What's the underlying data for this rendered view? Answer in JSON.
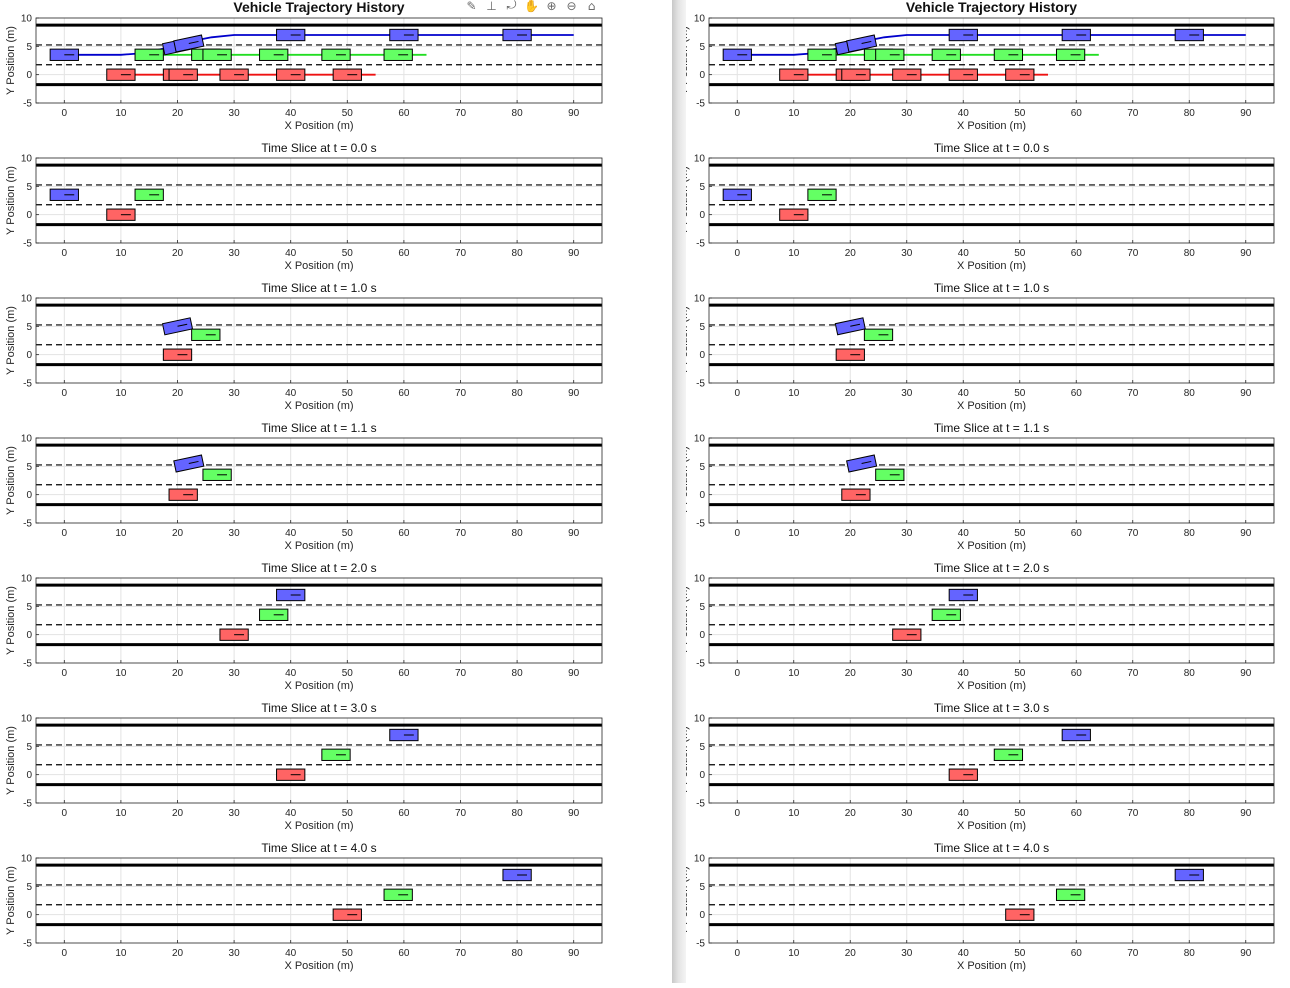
{
  "figures": [
    {
      "id": "left",
      "panel_titles": [
        "Vehicle Trajectory History",
        "Time Slice at t = 0.0 s",
        "Time Slice at t = 1.0 s",
        "Time Slice at t = 1.1 s",
        "Time Slice at t = 2.0 s",
        "Time Slice at t = 3.0 s",
        "Time Slice at t = 4.0 s"
      ]
    },
    {
      "id": "right",
      "panel_titles": [
        "Vehicle Trajectory History",
        "Time Slice at t = 0.0 s",
        "Time Slice at t = 1.0 s",
        "Time Slice at t = 1.1 s",
        "Time Slice at t = 2.0 s",
        "Time Slice at t = 3.0 s",
        "Time Slice at t = 4.0 s"
      ]
    }
  ],
  "toolbar": {
    "icons": [
      {
        "name": "brush-icon",
        "glyph": "✎"
      },
      {
        "name": "data-tips-icon",
        "glyph": "⊥"
      },
      {
        "name": "rotate-icon",
        "glyph": "⤾"
      },
      {
        "name": "pan-icon",
        "glyph": "✋"
      },
      {
        "name": "zoom-in-icon",
        "glyph": "⊕"
      },
      {
        "name": "zoom-out-icon",
        "glyph": "⊖"
      },
      {
        "name": "home-icon",
        "glyph": "⌂"
      }
    ]
  },
  "colors": {
    "blue_vehicle": "#6464ff",
    "green_vehicle": "#64ff64",
    "red_vehicle": "#ff6464",
    "blue_path": "#0000cc",
    "green_path": "#22dd22",
    "red_path": "#ee1111",
    "road_edge": "#000000",
    "lane_marking": "#000000"
  },
  "chart_data": [
    {
      "type": "scatter",
      "panel": "history",
      "title": "Vehicle Trajectory History",
      "xlabel": "X Position (m)",
      "ylabel": "Y Position (m)",
      "xlim": [
        -5,
        95
      ],
      "ylim": [
        -5,
        10
      ],
      "xticks": [
        0,
        10,
        20,
        30,
        40,
        50,
        60,
        70,
        80,
        90
      ],
      "yticks": [
        -5,
        0,
        5,
        10
      ],
      "grid": true,
      "road_edges_y": [
        -1.75,
        8.75
      ],
      "lane_markings_y": [
        1.75,
        5.25
      ],
      "paths": [
        {
          "color": "blue",
          "points": [
            [
              0,
              3.5
            ],
            [
              10,
              3.5
            ],
            [
              14,
              3.8
            ],
            [
              18,
              4.7
            ],
            [
              22,
              5.8
            ],
            [
              26,
              6.6
            ],
            [
              30,
              7.0
            ],
            [
              40,
              7.0
            ],
            [
              60,
              7.0
            ],
            [
              80,
              7.0
            ],
            [
              90,
              7.0
            ]
          ]
        },
        {
          "color": "green",
          "points": [
            [
              15,
              3.5
            ],
            [
              64,
              3.5
            ]
          ]
        },
        {
          "color": "red",
          "points": [
            [
              10,
              0
            ],
            [
              55,
              0
            ]
          ]
        }
      ],
      "vehicles": [
        {
          "color": "blue",
          "x": 0,
          "y": 3.5,
          "angle": 0
        },
        {
          "color": "blue",
          "x": 20,
          "y": 5.0,
          "angle": 12
        },
        {
          "color": "blue",
          "x": 22,
          "y": 5.5,
          "angle": 12
        },
        {
          "color": "blue",
          "x": 40,
          "y": 7.0,
          "angle": 0
        },
        {
          "color": "blue",
          "x": 60,
          "y": 7.0,
          "angle": 0
        },
        {
          "color": "blue",
          "x": 80,
          "y": 7.0,
          "angle": 0
        },
        {
          "color": "green",
          "x": 15,
          "y": 3.5,
          "angle": 0
        },
        {
          "color": "green",
          "x": 25,
          "y": 3.5,
          "angle": 0
        },
        {
          "color": "green",
          "x": 27,
          "y": 3.5,
          "angle": 0
        },
        {
          "color": "green",
          "x": 37,
          "y": 3.5,
          "angle": 0
        },
        {
          "color": "green",
          "x": 48,
          "y": 3.5,
          "angle": 0
        },
        {
          "color": "green",
          "x": 59,
          "y": 3.5,
          "angle": 0
        },
        {
          "color": "red",
          "x": 10,
          "y": 0,
          "angle": 0
        },
        {
          "color": "red",
          "x": 20,
          "y": 0,
          "angle": 0
        },
        {
          "color": "red",
          "x": 21,
          "y": 0,
          "angle": 0
        },
        {
          "color": "red",
          "x": 30,
          "y": 0,
          "angle": 0
        },
        {
          "color": "red",
          "x": 40,
          "y": 0,
          "angle": 0
        },
        {
          "color": "red",
          "x": 50,
          "y": 0,
          "angle": 0
        }
      ]
    },
    {
      "type": "scatter",
      "panel": "slice",
      "title": "Time Slice at t = 0.0 s",
      "xlabel": "X Position (m)",
      "ylabel": "Y Position (m)",
      "xlim": [
        -5,
        95
      ],
      "ylim": [
        -5,
        10
      ],
      "xticks": [
        0,
        10,
        20,
        30,
        40,
        50,
        60,
        70,
        80,
        90
      ],
      "yticks": [
        -5,
        0,
        5,
        10
      ],
      "grid": true,
      "road_edges_y": [
        -1.75,
        8.75
      ],
      "lane_markings_y": [
        1.75,
        5.25
      ],
      "vehicles": [
        {
          "color": "blue",
          "x": 0,
          "y": 3.5,
          "angle": 0
        },
        {
          "color": "green",
          "x": 15,
          "y": 3.5,
          "angle": 0
        },
        {
          "color": "red",
          "x": 10,
          "y": 0,
          "angle": 0
        }
      ]
    },
    {
      "type": "scatter",
      "panel": "slice",
      "title": "Time Slice at t = 1.0 s",
      "xlabel": "X Position (m)",
      "ylabel": "Y Position (m)",
      "xlim": [
        -5,
        95
      ],
      "ylim": [
        -5,
        10
      ],
      "xticks": [
        0,
        10,
        20,
        30,
        40,
        50,
        60,
        70,
        80,
        90
      ],
      "yticks": [
        -5,
        0,
        5,
        10
      ],
      "grid": true,
      "road_edges_y": [
        -1.75,
        8.75
      ],
      "lane_markings_y": [
        1.75,
        5.25
      ],
      "vehicles": [
        {
          "color": "blue",
          "x": 20,
          "y": 5.0,
          "angle": 12
        },
        {
          "color": "green",
          "x": 25,
          "y": 3.5,
          "angle": 0
        },
        {
          "color": "red",
          "x": 20,
          "y": 0,
          "angle": 0
        }
      ]
    },
    {
      "type": "scatter",
      "panel": "slice",
      "title": "Time Slice at t = 1.1 s",
      "xlabel": "X Position (m)",
      "ylabel": "Y Position (m)",
      "xlim": [
        -5,
        95
      ],
      "ylim": [
        -5,
        10
      ],
      "xticks": [
        0,
        10,
        20,
        30,
        40,
        50,
        60,
        70,
        80,
        90
      ],
      "yticks": [
        -5,
        0,
        5,
        10
      ],
      "grid": true,
      "road_edges_y": [
        -1.75,
        8.75
      ],
      "lane_markings_y": [
        1.75,
        5.25
      ],
      "vehicles": [
        {
          "color": "blue",
          "x": 22,
          "y": 5.5,
          "angle": 12
        },
        {
          "color": "green",
          "x": 27,
          "y": 3.5,
          "angle": 0
        },
        {
          "color": "red",
          "x": 21,
          "y": 0,
          "angle": 0
        }
      ]
    },
    {
      "type": "scatter",
      "panel": "slice",
      "title": "Time Slice at t = 2.0 s",
      "xlabel": "X Position (m)",
      "ylabel": "Y Position (m)",
      "xlim": [
        -5,
        95
      ],
      "ylim": [
        -5,
        10
      ],
      "xticks": [
        0,
        10,
        20,
        30,
        40,
        50,
        60,
        70,
        80,
        90
      ],
      "yticks": [
        -5,
        0,
        5,
        10
      ],
      "grid": true,
      "road_edges_y": [
        -1.75,
        8.75
      ],
      "lane_markings_y": [
        1.75,
        5.25
      ],
      "vehicles": [
        {
          "color": "blue",
          "x": 40,
          "y": 7.0,
          "angle": 0
        },
        {
          "color": "green",
          "x": 37,
          "y": 3.5,
          "angle": 0
        },
        {
          "color": "red",
          "x": 30,
          "y": 0,
          "angle": 0
        }
      ]
    },
    {
      "type": "scatter",
      "panel": "slice",
      "title": "Time Slice at t = 3.0 s",
      "xlabel": "X Position (m)",
      "ylabel": "Y Position (m)",
      "xlim": [
        -5,
        95
      ],
      "ylim": [
        -5,
        10
      ],
      "xticks": [
        0,
        10,
        20,
        30,
        40,
        50,
        60,
        70,
        80,
        90
      ],
      "yticks": [
        -5,
        0,
        5,
        10
      ],
      "grid": true,
      "road_edges_y": [
        -1.75,
        8.75
      ],
      "lane_markings_y": [
        1.75,
        5.25
      ],
      "vehicles": [
        {
          "color": "blue",
          "x": 60,
          "y": 7.0,
          "angle": 0
        },
        {
          "color": "green",
          "x": 48,
          "y": 3.5,
          "angle": 0
        },
        {
          "color": "red",
          "x": 40,
          "y": 0,
          "angle": 0
        }
      ]
    },
    {
      "type": "scatter",
      "panel": "slice",
      "title": "Time Slice at t = 4.0 s",
      "xlabel": "X Position (m)",
      "ylabel": "Y Position (m)",
      "xlim": [
        -5,
        95
      ],
      "ylim": [
        -5,
        10
      ],
      "xticks": [
        0,
        10,
        20,
        30,
        40,
        50,
        60,
        70,
        80,
        90
      ],
      "yticks": [
        -5,
        0,
        5,
        10
      ],
      "grid": true,
      "road_edges_y": [
        -1.75,
        8.75
      ],
      "lane_markings_y": [
        1.75,
        5.25
      ],
      "vehicles": [
        {
          "color": "blue",
          "x": 80,
          "y": 7.0,
          "angle": 0
        },
        {
          "color": "green",
          "x": 59,
          "y": 3.5,
          "angle": 0
        },
        {
          "color": "red",
          "x": 50,
          "y": 0,
          "angle": 0
        }
      ]
    }
  ]
}
